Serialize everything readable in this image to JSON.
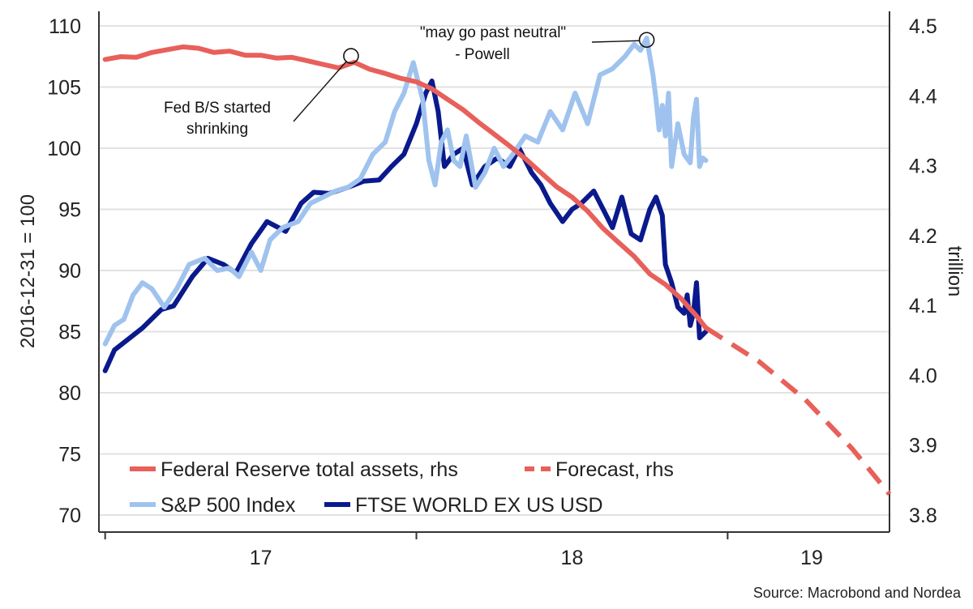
{
  "chart_data": {
    "type": "line",
    "left_axis": {
      "label": "2016-12-31 = 100",
      "ylim": [
        70,
        110.7
      ],
      "ticks": [
        70,
        75,
        80,
        85,
        90,
        95,
        100,
        105,
        110
      ]
    },
    "right_axis": {
      "label": "trillion",
      "ylim": [
        3.8,
        4.5
      ],
      "ticks": [
        "3.8",
        "3.9",
        "4.0",
        "4.1",
        "4.2",
        "4.3",
        "4.4",
        "4.5"
      ]
    },
    "x_axis": {
      "domain": [
        2016.98,
        2019.52
      ],
      "ticks": [
        {
          "label": "17",
          "x": 2017.5
        },
        {
          "label": "18",
          "x": 2018.5
        },
        {
          "label": "19",
          "x": 2019.27
        }
      ],
      "tick_marks": [
        2017.0,
        2018.0,
        2019.0
      ]
    },
    "series": [
      {
        "name": "FTSE WORLD EX US USD",
        "axis": "left",
        "color": "#0a1a8c",
        "x": [
          2017.0,
          2017.03,
          2017.07,
          2017.12,
          2017.18,
          2017.22,
          2017.28,
          2017.33,
          2017.38,
          2017.42,
          2017.47,
          2017.52,
          2017.58,
          2017.63,
          2017.67,
          2017.72,
          2017.78,
          2017.83,
          2017.88,
          2017.92,
          2017.96,
          2018.0,
          2018.03,
          2018.05,
          2018.07,
          2018.09,
          2018.12,
          2018.15,
          2018.18,
          2018.22,
          2018.26,
          2018.3,
          2018.33,
          2018.37,
          2018.4,
          2018.43,
          2018.47,
          2018.5,
          2018.53,
          2018.57,
          2018.6,
          2018.63,
          2018.66,
          2018.69,
          2018.72,
          2018.75,
          2018.77,
          2018.79,
          2018.8,
          2018.82,
          2018.84,
          2018.86,
          2018.87,
          2018.88,
          2018.89,
          2018.9,
          2018.91,
          2018.93
        ],
        "values": [
          81.8,
          83.5,
          84.3,
          85.3,
          86.8,
          87.1,
          89.5,
          91.0,
          90.5,
          89.8,
          92.2,
          94.0,
          93.2,
          95.5,
          96.4,
          96.3,
          96.8,
          97.3,
          97.4,
          98.5,
          99.5,
          102.0,
          104.5,
          105.5,
          103.0,
          98.5,
          99.5,
          100.0,
          97.0,
          98.5,
          99.2,
          98.5,
          100.0,
          98.0,
          97.0,
          95.5,
          94.0,
          95.0,
          95.5,
          96.5,
          95.0,
          93.5,
          96.0,
          93.0,
          92.5,
          95.0,
          96.0,
          94.5,
          90.5,
          89.0,
          87.0,
          86.5,
          88.0,
          85.5,
          86.5,
          89.0,
          84.5,
          85.0
        ]
      },
      {
        "name": "S&P 500 Index",
        "axis": "left",
        "color": "#9fc3ee",
        "x": [
          2017.0,
          2017.03,
          2017.06,
          2017.09,
          2017.12,
          2017.15,
          2017.19,
          2017.23,
          2017.27,
          2017.32,
          2017.36,
          2017.4,
          2017.43,
          2017.47,
          2017.5,
          2017.53,
          2017.57,
          2017.62,
          2017.66,
          2017.7,
          2017.74,
          2017.78,
          2017.82,
          2017.86,
          2017.9,
          2017.93,
          2017.96,
          2017.99,
          2018.02,
          2018.04,
          2018.06,
          2018.08,
          2018.1,
          2018.12,
          2018.14,
          2018.16,
          2018.19,
          2018.22,
          2018.25,
          2018.28,
          2018.31,
          2018.35,
          2018.39,
          2018.43,
          2018.47,
          2018.51,
          2018.55,
          2018.59,
          2018.63,
          2018.67,
          2018.7,
          2018.72,
          2018.74,
          2018.76,
          2018.77,
          2018.78,
          2018.79,
          2018.8,
          2018.81,
          2018.82,
          2018.84,
          2018.86,
          2018.88,
          2018.89,
          2018.9,
          2018.91,
          2018.92,
          2018.93
        ],
        "values": [
          84.0,
          85.5,
          86.0,
          88.0,
          89.0,
          88.5,
          87.0,
          88.5,
          90.5,
          91.0,
          90.0,
          90.2,
          89.5,
          91.5,
          90.0,
          92.5,
          93.5,
          94.0,
          95.5,
          96.0,
          96.5,
          96.8,
          97.5,
          99.5,
          100.5,
          103.0,
          104.5,
          107.0,
          104.0,
          99.0,
          97.0,
          100.5,
          101.5,
          99.0,
          98.5,
          101.0,
          96.8,
          98.0,
          100.0,
          98.5,
          99.5,
          101.0,
          100.5,
          103.0,
          101.5,
          104.5,
          102.0,
          106.0,
          106.5,
          107.5,
          108.5,
          108.0,
          109.0,
          106.0,
          104.0,
          101.5,
          103.5,
          101.0,
          104.5,
          98.5,
          102.0,
          99.5,
          98.8,
          102.5,
          104.0,
          98.5,
          99.2,
          99.0
        ]
      },
      {
        "name": "Federal Reserve total assets, rhs",
        "axis": "right",
        "color": "#e8605a",
        "x": [
          2017.0,
          2017.05,
          2017.1,
          2017.15,
          2017.2,
          2017.25,
          2017.3,
          2017.35,
          2017.4,
          2017.45,
          2017.5,
          2017.55,
          2017.6,
          2017.65,
          2017.7,
          2017.75,
          2017.8,
          2017.85,
          2017.9,
          2017.95,
          2018.0,
          2018.05,
          2018.1,
          2018.15,
          2018.2,
          2018.25,
          2018.3,
          2018.35,
          2018.4,
          2018.45,
          2018.5,
          2018.55,
          2018.6,
          2018.65,
          2018.7,
          2018.75,
          2018.8,
          2018.85,
          2018.9,
          2018.93
        ],
        "values": [
          4.452,
          4.456,
          4.455,
          4.462,
          4.466,
          4.47,
          4.468,
          4.462,
          4.464,
          4.458,
          4.458,
          4.454,
          4.455,
          4.45,
          4.445,
          4.44,
          4.448,
          4.438,
          4.432,
          4.425,
          4.42,
          4.41,
          4.395,
          4.38,
          4.362,
          4.345,
          4.328,
          4.31,
          4.29,
          4.27,
          4.255,
          4.235,
          4.21,
          4.19,
          4.17,
          4.145,
          4.13,
          4.11,
          4.085,
          4.068
        ]
      },
      {
        "name": "Forecast, rhs",
        "axis": "right",
        "color": "#e8605a",
        "dashed": true,
        "x": [
          2018.93,
          2019.1,
          2019.25,
          2019.4,
          2019.52
        ],
        "values": [
          4.068,
          4.02,
          3.965,
          3.895,
          3.83
        ]
      }
    ],
    "annotations": [
      {
        "lines": [
          "Fed B/S started",
          "shrinking"
        ],
        "target": {
          "x": 2017.79,
          "axis": "right",
          "y": 4.457
        }
      },
      {
        "lines": [
          "\"may go past neutral\"",
          "- Powell"
        ],
        "target": {
          "x": 2018.74,
          "axis": "right",
          "y": 4.48
        }
      }
    ],
    "legend": {
      "position": "bottom-left",
      "entries": [
        {
          "label": "Federal Reserve total assets, rhs",
          "style": "solid",
          "color": "#e8605a"
        },
        {
          "label": "Forecast, rhs",
          "style": "dashed",
          "color": "#e8605a"
        },
        {
          "label": "S&P 500 Index",
          "style": "solid",
          "color": "#9fc3ee"
        },
        {
          "label": "FTSE WORLD EX US USD",
          "style": "solid",
          "color": "#0a1a8c"
        }
      ]
    },
    "grid": true,
    "source": "Source: Macrobond and Nordea"
  }
}
